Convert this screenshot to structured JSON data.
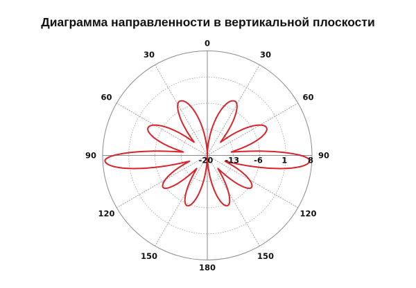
{
  "chart_data": {
    "type": "line",
    "subtype": "polar",
    "title": "Диаграмма направленности в вертикальной плоскости",
    "angle_ticks": [
      "0",
      "30",
      "60",
      "90",
      "120",
      "150",
      "180"
    ],
    "angle_tick_values": [
      0,
      30,
      60,
      90,
      120,
      150,
      180
    ],
    "radial_ticks": [
      "-20",
      "-13",
      "-6",
      "1",
      "8"
    ],
    "radial_tick_values": [
      -20,
      -13,
      -6,
      1,
      8
    ],
    "rlim": [
      -20,
      8
    ],
    "symmetric": true,
    "grid": true,
    "line_color": "#d8232a",
    "grid_color": "#9a9a9a",
    "lobes": [
      {
        "from_deg": 0,
        "to_deg": 45,
        "peak_deg": 27,
        "peak_db": -3.7,
        "null_db_start": -20,
        "null_db_end": -15
      },
      {
        "from_deg": 45,
        "to_deg": 82,
        "peak_deg": 65,
        "peak_db": -2.5,
        "null_db_start": -15,
        "null_db_end": -13.5
      },
      {
        "from_deg": 82,
        "to_deg": 108,
        "peak_deg": 93,
        "peak_db": 7.4,
        "null_db_start": -13.5,
        "null_db_end": -15
      },
      {
        "from_deg": 108,
        "to_deg": 141,
        "peak_deg": 126,
        "peak_db": -5.4,
        "null_db_start": -15,
        "null_db_end": -15.5
      },
      {
        "from_deg": 141,
        "to_deg": 180,
        "peak_deg": 158,
        "peak_db": -5.5,
        "null_db_start": -15.5,
        "null_db_end": -20
      }
    ]
  }
}
